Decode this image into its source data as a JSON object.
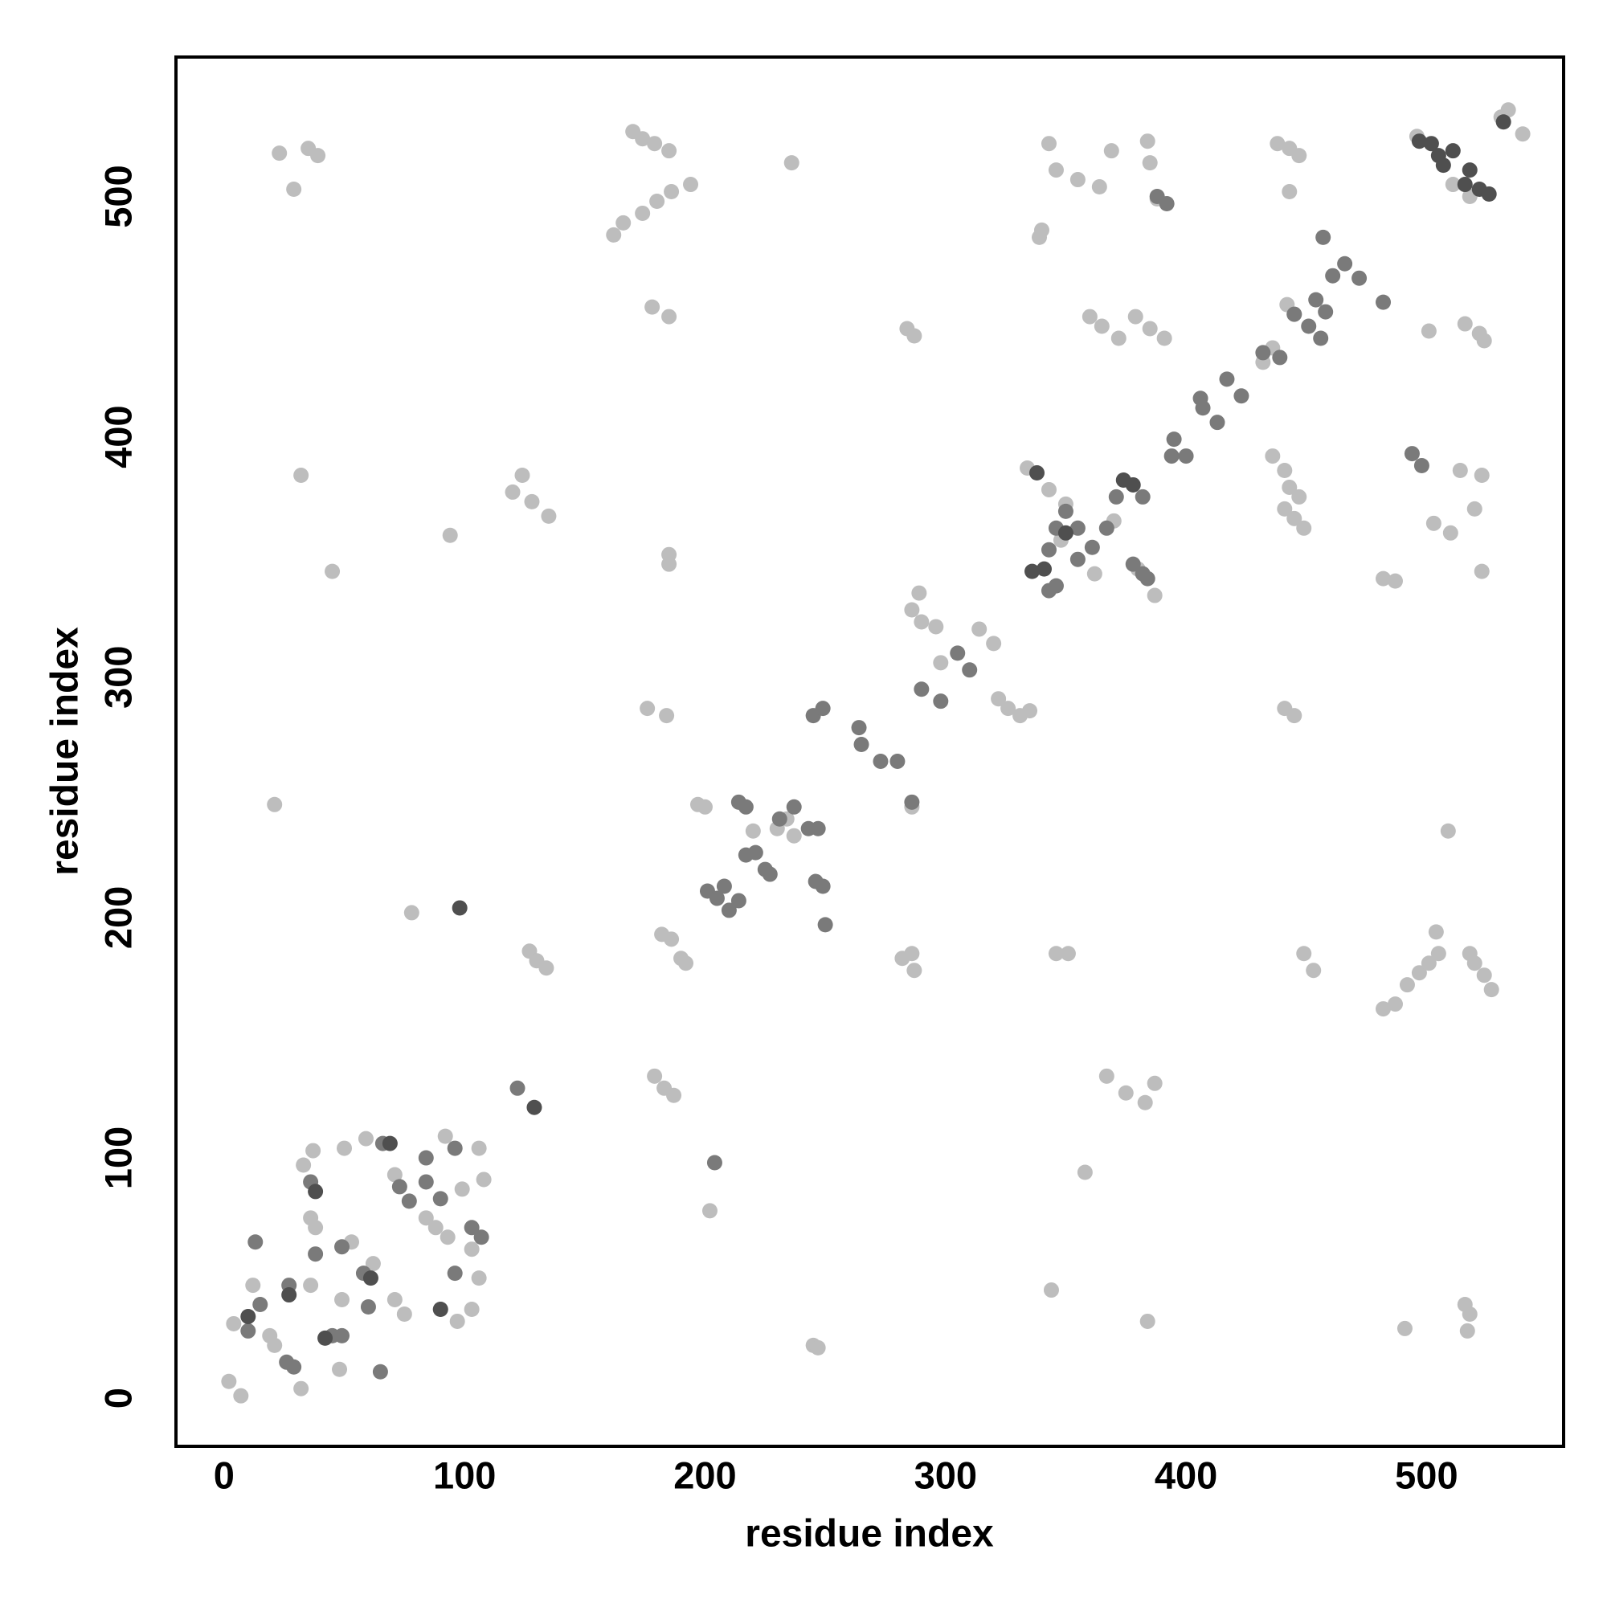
{
  "chart_data": {
    "type": "scatter",
    "xlabel": "residue index",
    "ylabel": "residue index",
    "xlim": [
      -20,
      557
    ],
    "ylim": [
      -20,
      558
    ],
    "xticks": [
      0,
      100,
      200,
      300,
      400,
      500
    ],
    "yticks": [
      0,
      100,
      200,
      300,
      400,
      500
    ],
    "series": [
      {
        "color": "#bdbdbd",
        "x": [
          23,
          35,
          39,
          29,
          170,
          174,
          179,
          185,
          162,
          166,
          174,
          180,
          186,
          194,
          236,
          343,
          384,
          369,
          385,
          346,
          355,
          364,
          340,
          339,
          438,
          443,
          447,
          443,
          496,
          534,
          531,
          540,
          518,
          511,
          178,
          185,
          284,
          287,
          360,
          365,
          372,
          379,
          385,
          391,
          442,
          445,
          501,
          516,
          522,
          524,
          432,
          436,
          32,
          124,
          120,
          128,
          135,
          94,
          45,
          334,
          436,
          441,
          443,
          447,
          441,
          445,
          449,
          514,
          523,
          503,
          510,
          520,
          523,
          482,
          487,
          185,
          185,
          289,
          286,
          290,
          296,
          314,
          320,
          298,
          322,
          326,
          331,
          335,
          387,
          176,
          184,
          441,
          445,
          21,
          197,
          200,
          234,
          230,
          237,
          286,
          286,
          282,
          287,
          78,
          182,
          186,
          190,
          192,
          127,
          130,
          134,
          346,
          351,
          449,
          453,
          482,
          487,
          492,
          497,
          501,
          505,
          504,
          518,
          520,
          524,
          527,
          509,
          179,
          183,
          187,
          202,
          367,
          375,
          383,
          387,
          358,
          344,
          384,
          491,
          516,
          518,
          517,
          245,
          247,
          2,
          7,
          4,
          12,
          33,
          37,
          50,
          106,
          92,
          108,
          99,
          84,
          88,
          93,
          103,
          106,
          103,
          97,
          90,
          75,
          71,
          48,
          32,
          21,
          19,
          36,
          38,
          36,
          49,
          53,
          62,
          71,
          59,
          343,
          350,
          348,
          362,
          370,
          380,
          220,
          388
        ],
        "values": [
          518,
          520,
          517,
          503,
          527,
          524,
          522,
          519,
          484,
          489,
          493,
          498,
          502,
          505,
          514,
          522,
          523,
          519,
          514,
          511,
          507,
          504,
          486,
          483,
          522,
          520,
          517,
          502,
          525,
          536,
          533,
          526,
          500,
          505,
          454,
          450,
          445,
          442,
          450,
          446,
          441,
          450,
          445,
          441,
          455,
          451,
          444,
          447,
          443,
          440,
          431,
          437,
          384,
          384,
          377,
          373,
          367,
          359,
          344,
          387,
          392,
          386,
          379,
          375,
          370,
          366,
          362,
          386,
          384,
          364,
          360,
          370,
          344,
          341,
          340,
          351,
          347,
          335,
          328,
          323,
          321,
          320,
          314,
          306,
          291,
          287,
          284,
          286,
          334,
          287,
          284,
          287,
          284,
          247,
          247,
          246,
          241,
          237,
          234,
          246,
          185,
          183,
          178,
          202,
          193,
          191,
          183,
          181,
          186,
          182,
          179,
          185,
          185,
          185,
          178,
          162,
          164,
          172,
          177,
          181,
          185,
          194,
          185,
          181,
          176,
          170,
          236,
          134,
          129,
          126,
          78,
          134,
          127,
          123,
          131,
          94,
          45,
          32,
          29,
          39,
          35,
          28,
          22,
          21,
          7,
          1,
          31,
          47,
          97,
          103,
          104,
          104,
          109,
          91,
          87,
          75,
          71,
          67,
          62,
          50,
          37,
          32,
          37,
          35,
          41,
          12,
          4,
          22,
          26,
          75,
          71,
          47,
          41,
          65,
          56,
          93,
          108,
          378,
          372,
          357,
          343,
          365,
          345,
          236,
          499
        ]
      },
      {
        "color": "#7a7a7a",
        "x": [
          10,
          15,
          13,
          27,
          26,
          29,
          36,
          38,
          49,
          58,
          66,
          73,
          77,
          84,
          90,
          103,
          107,
          96,
          60,
          65,
          49,
          45,
          122,
          204,
          84,
          96,
          201,
          205,
          210,
          214,
          208,
          217,
          221,
          225,
          227,
          231,
          237,
          214,
          217,
          243,
          247,
          246,
          249,
          250,
          245,
          249,
          264,
          265,
          273,
          280,
          286,
          290,
          298,
          305,
          310,
          343,
          346,
          355,
          361,
          367,
          371,
          382,
          382,
          378,
          384,
          343,
          346,
          350,
          355,
          394,
          400,
          395,
          406,
          407,
          413,
          417,
          423,
          432,
          439,
          445,
          454,
          458,
          451,
          456,
          461,
          466,
          472,
          482,
          457,
          388,
          392,
          494,
          498
        ],
        "values": [
          28,
          39,
          65,
          47,
          15,
          13,
          90,
          60,
          63,
          52,
          106,
          88,
          82,
          90,
          83,
          71,
          67,
          52,
          38,
          11,
          26,
          26,
          129,
          98,
          100,
          104,
          211,
          208,
          203,
          207,
          213,
          226,
          227,
          220,
          218,
          241,
          246,
          248,
          246,
          237,
          237,
          215,
          213,
          197,
          284,
          287,
          279,
          272,
          265,
          265,
          248,
          295,
          290,
          310,
          303,
          336,
          338,
          349,
          354,
          362,
          375,
          375,
          343,
          347,
          341,
          353,
          362,
          369,
          362,
          392,
          392,
          399,
          416,
          412,
          406,
          424,
          417,
          435,
          433,
          451,
          457,
          452,
          446,
          441,
          467,
          472,
          466,
          456,
          483,
          500,
          497,
          393,
          388
        ]
      },
      {
        "color": "#4f4f4f",
        "x": [
          10,
          27,
          42,
          38,
          61,
          98,
          69,
          90,
          129,
          502,
          505,
          507,
          511,
          518,
          516,
          522,
          526,
          497,
          532,
          338,
          336,
          374,
          341,
          378,
          350
        ],
        "values": [
          34,
          43,
          25,
          86,
          50,
          204,
          106,
          37,
          121,
          522,
          517,
          513,
          519,
          511,
          505,
          503,
          501,
          523,
          531,
          385,
          344,
          382,
          345,
          380,
          360
        ]
      }
    ]
  }
}
